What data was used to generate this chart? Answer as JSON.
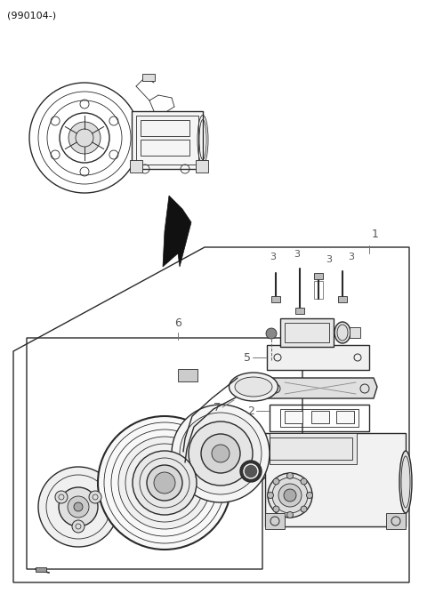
{
  "title": "(990104-)",
  "bg_color": "#ffffff",
  "lc": "#2a2a2a",
  "lc_gray": "#888888",
  "lc_light": "#aaaaaa",
  "fig_width": 4.8,
  "fig_height": 6.68,
  "dpi": 100
}
